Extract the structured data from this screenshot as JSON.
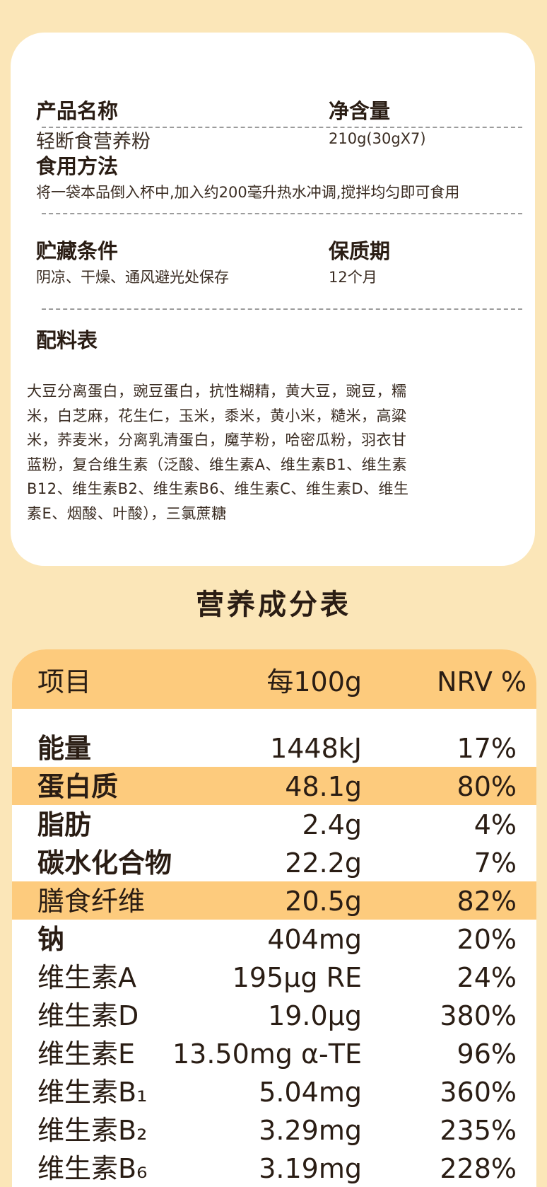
{
  "product": {
    "name_label": "产品名称",
    "name_value": "轻断食营养粉",
    "net_label": "净含量",
    "net_value": "210g(30gX7)"
  },
  "usage": {
    "label": "食用方法",
    "value": "将一袋本品倒入杯中,加入约200毫升热水冲调,搅拌均匀即可食用"
  },
  "storage": {
    "label": "贮藏条件",
    "value": "阴凉、干燥、通风避光处保存",
    "shelf_label": "保质期",
    "shelf_value": "12个月"
  },
  "ingredients": {
    "label": "配料表",
    "lines": [
      "大豆分离蛋白，豌豆蛋白，抗性糊精，黄大豆，豌豆，糯",
      "米，白芝麻，花生仁，玉米，黍米，黄小米，糙米，高粱",
      "米，荞麦米，分离乳清蛋白，魔芋粉，哈密瓜粉，羽衣甘",
      "蓝粉，复合维生素（泛酸、维生素A、维生素B1、维生素",
      "B12、维生素B2、维生素B6、维生素C、维生素D、维生",
      "素E、烟酸、叶酸），三氯蔗糖"
    ]
  },
  "nutrition": {
    "title": "营养成分表",
    "headers": [
      "项目",
      "每100g",
      "NRV %"
    ],
    "rows": [
      {
        "name": "能量",
        "amount": "1448kJ",
        "nrv": "17%"
      },
      {
        "name": "蛋白质",
        "amount": "48.1g",
        "nrv": "80%"
      },
      {
        "name": "脂肪",
        "amount": "2.4g",
        "nrv": "4%"
      },
      {
        "name": "碳水化合物",
        "amount": "22.2g",
        "nrv": "7%"
      },
      {
        "name": "膳食纤维",
        "amount": "20.5g",
        "nrv": "82%"
      },
      {
        "name": "钠",
        "amount": "404mg",
        "nrv": "20%"
      },
      {
        "name": "维生素A",
        "amount": "195μg RE",
        "nrv": "24%"
      },
      {
        "name": "维生素D",
        "amount": "19.0μg",
        "nrv": "380%"
      },
      {
        "name": "维生素E",
        "amount": "13.50mg α-TE",
        "nrv": "96%"
      },
      {
        "name": "维生素B₁",
        "amount": "5.04mg",
        "nrv": "360%"
      },
      {
        "name": "维生素B₂",
        "amount": "3.29mg",
        "nrv": "235%"
      },
      {
        "name": "维生素B₆",
        "amount": "3.19mg",
        "nrv": "228%"
      }
    ]
  },
  "colors": {
    "background": "#fbe6b8",
    "highlight": "#fdcb7d",
    "card": "#ffffff",
    "text": "#2a1d14"
  }
}
